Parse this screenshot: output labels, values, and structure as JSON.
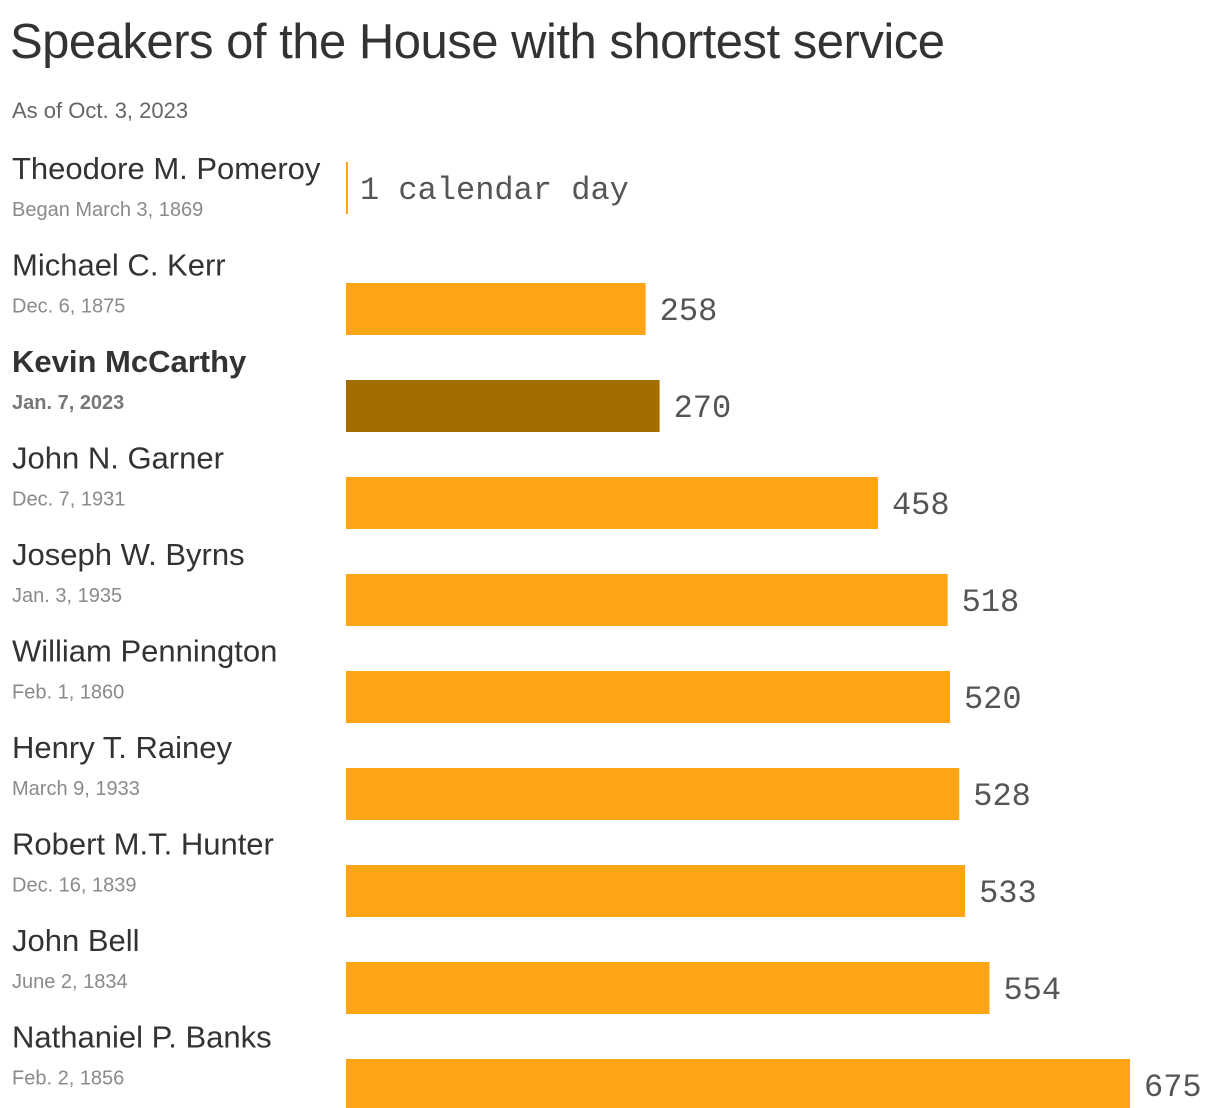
{
  "header": {
    "title": "Speakers of the House with shortest service",
    "subtitle": "As of Oct. 3, 2023"
  },
  "colors": {
    "bar": "#FFA515",
    "highlight": "#A36D00"
  },
  "chart_data": {
    "type": "bar",
    "orientation": "horizontal",
    "title": "Speakers of the House with shortest service",
    "subtitle": "As of Oct. 3, 2023",
    "xlabel": "",
    "ylabel": "",
    "xlim": [
      0,
      675
    ],
    "grid": false,
    "categories": [
      "Theodore M. Pomeroy",
      "Michael C. Kerr",
      "Kevin McCarthy",
      "John N. Garner",
      "Joseph W. Byrns",
      "William Pennington",
      "Henry T. Rainey",
      "Robert M.T. Hunter",
      "John Bell",
      "Nathaniel P. Banks"
    ],
    "dates": [
      "Began March 3, 1869",
      "Dec. 6, 1875",
      "Jan. 7, 2023",
      "Dec. 7, 1931",
      "Jan. 3, 1935",
      "Feb. 1, 1860",
      "March 9, 1933",
      "Dec. 16, 1839",
      "June 2, 1834",
      "Feb. 2, 1856"
    ],
    "values": [
      1,
      258,
      270,
      458,
      518,
      520,
      528,
      533,
      554,
      675
    ],
    "value_labels": [
      "1 calendar day",
      "258",
      "270",
      "458",
      "518",
      "520",
      "528",
      "533",
      "554",
      "675"
    ],
    "highlighted": [
      "Kevin McCarthy"
    ]
  }
}
